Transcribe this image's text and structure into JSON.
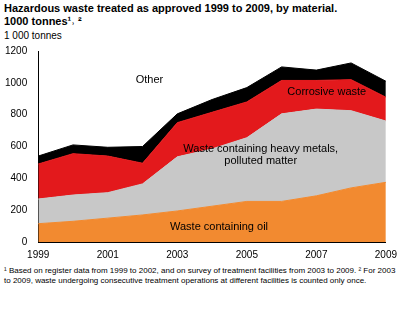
{
  "chart_data": {
    "type": "area",
    "stacked": true,
    "title": [
      "Hazardous waste treated as approved 1999 to 2009, by material.",
      "1000 tonnes¹˒ ²"
    ],
    "y_label": "1 000 tonnes",
    "categories": [
      "1999",
      null,
      "2001",
      null,
      "2003",
      null,
      "2005",
      null,
      "2007",
      null,
      "2009"
    ],
    "series": [
      {
        "name": "Waste containing oil",
        "color": "#f28a30",
        "values": [
          115,
          130,
          150,
          170,
          195,
          225,
          255,
          255,
          290,
          340,
          375
        ]
      },
      {
        "name": "Waste containing heavy metals, polluted matter",
        "color": "#c8c8c8",
        "values": [
          155,
          165,
          160,
          195,
          340,
          360,
          400,
          550,
          545,
          485,
          385
        ]
      },
      {
        "name": "Corrosive waste",
        "color": "#e3191c",
        "values": [
          220,
          260,
          230,
          130,
          215,
          230,
          225,
          210,
          180,
          195,
          150
        ]
      },
      {
        "name": "Other",
        "color": "#000000",
        "values": [
          50,
          55,
          55,
          105,
          55,
          80,
          90,
          85,
          65,
          105,
          100
        ]
      }
    ],
    "ylim": [
      0,
      1200
    ],
    "yticks": [
      0,
      200,
      400,
      600,
      800,
      1000,
      1200
    ],
    "grid": false,
    "footnotes": [
      "¹ Based on register data from 1999 to 2002, and on survey of treatment facilities from 2003 to 2009. ² For 2003 to 2009, waste undergoing consecutive treatment operations at different facilities is counted only once."
    ]
  }
}
